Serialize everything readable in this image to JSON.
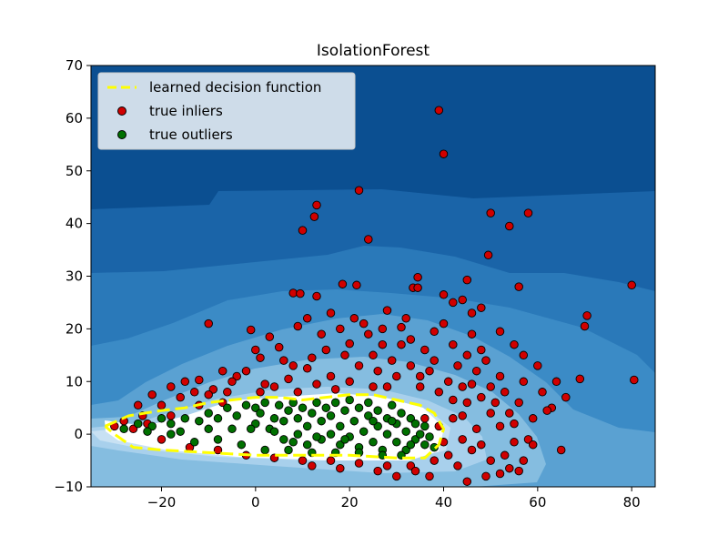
{
  "chart_data": {
    "type": "scatter",
    "title": "IsolationForest",
    "xlabel": "",
    "ylabel": "",
    "xlim": [
      -35,
      85
    ],
    "ylim": [
      -10,
      70
    ],
    "xticks": [
      -20,
      0,
      20,
      40,
      60,
      80
    ],
    "yticks": [
      -10,
      0,
      10,
      20,
      30,
      40,
      50,
      60,
      70
    ],
    "xtick_labels": [
      "−20",
      "0",
      "20",
      "40",
      "60",
      "80"
    ],
    "ytick_labels": [
      "−10",
      "0",
      "10",
      "20",
      "30",
      "40",
      "50",
      "60",
      "70"
    ],
    "grid": false,
    "legend_position": "top-left",
    "legend": [
      {
        "label": "learned decision function",
        "kind": "dashed-line",
        "color": "#ffff00"
      },
      {
        "label": "true inliers",
        "kind": "marker",
        "color": "#d00000"
      },
      {
        "label": "true outliers",
        "kind": "marker",
        "color": "#007000"
      }
    ],
    "decision_boundary": [
      [
        -32,
        1.5
      ],
      [
        -27,
        3.5
      ],
      [
        -20,
        4.5
      ],
      [
        -15,
        5
      ],
      [
        -10,
        6
      ],
      [
        -5,
        6.5
      ],
      [
        0,
        7
      ],
      [
        5,
        7
      ],
      [
        10,
        6.5
      ],
      [
        15,
        7
      ],
      [
        20,
        7.5
      ],
      [
        25,
        7.5
      ],
      [
        30,
        6.5
      ],
      [
        35,
        5.5
      ],
      [
        38,
        4
      ],
      [
        40,
        1
      ],
      [
        39,
        -2
      ],
      [
        36,
        -4.5
      ],
      [
        30,
        -4.5
      ],
      [
        20,
        -4
      ],
      [
        10,
        -4
      ],
      [
        0,
        -4
      ],
      [
        -10,
        -3.5
      ],
      [
        -20,
        -3
      ],
      [
        -26,
        -2.5
      ],
      [
        -30,
        0
      ],
      [
        -32,
        1.5
      ]
    ],
    "inliers": [
      [
        39,
        61.5
      ],
      [
        40,
        53.2
      ],
      [
        22,
        46.3
      ],
      [
        50,
        42
      ],
      [
        58,
        42
      ],
      [
        13,
        43.5
      ],
      [
        54,
        39.5
      ],
      [
        12.5,
        41.3
      ],
      [
        10,
        38.7
      ],
      [
        24,
        37
      ],
      [
        49.5,
        34
      ],
      [
        34.5,
        29.8
      ],
      [
        45,
        29.3
      ],
      [
        80,
        28.3
      ],
      [
        18.5,
        28.5
      ],
      [
        21.5,
        28.3
      ],
      [
        33.5,
        27.8
      ],
      [
        34.5,
        27.8
      ],
      [
        56,
        28
      ],
      [
        8,
        26.8
      ],
      [
        9.5,
        26.7
      ],
      [
        13,
        26.2
      ],
      [
        40,
        26.5
      ],
      [
        -10,
        21
      ],
      [
        -1,
        19.8
      ],
      [
        70.5,
        22.5
      ],
      [
        70,
        20.5
      ],
      [
        28,
        23.5
      ],
      [
        42,
        25
      ],
      [
        44,
        25.5
      ],
      [
        46,
        23
      ],
      [
        48,
        24
      ],
      [
        52,
        19.5
      ],
      [
        55,
        17
      ],
      [
        57,
        15
      ],
      [
        60,
        13
      ],
      [
        64,
        10
      ],
      [
        69,
        10.5
      ],
      [
        80.5,
        10.3
      ],
      [
        63,
        5
      ],
      [
        66,
        7
      ],
      [
        62,
        4.5
      ],
      [
        65,
        -3
      ],
      [
        58,
        -1
      ],
      [
        55,
        2
      ],
      [
        50,
        -5
      ],
      [
        52,
        -7.5
      ],
      [
        54,
        -6.5
      ],
      [
        56,
        -7
      ],
      [
        3,
        18.5
      ],
      [
        9,
        20.5
      ],
      [
        14,
        19
      ],
      [
        18,
        20
      ],
      [
        23,
        21
      ],
      [
        31,
        20.3
      ],
      [
        38,
        19.5
      ],
      [
        42,
        17
      ],
      [
        36,
        16
      ],
      [
        27,
        17
      ],
      [
        20,
        17.2
      ],
      [
        12,
        14.5
      ],
      [
        6,
        14
      ],
      [
        1,
        14.5
      ],
      [
        -7,
        12
      ],
      [
        -12,
        10.3
      ],
      [
        -18,
        9
      ],
      [
        -22,
        7.5
      ],
      [
        -25,
        5.5
      ],
      [
        -15,
        10
      ],
      [
        -9,
        8.5
      ],
      [
        -4,
        11
      ],
      [
        2,
        9.5
      ],
      [
        7,
        10.5
      ],
      [
        11,
        12.5
      ],
      [
        16,
        11
      ],
      [
        22,
        13
      ],
      [
        26,
        12
      ],
      [
        30,
        11
      ],
      [
        33,
        13
      ],
      [
        37,
        12
      ],
      [
        41,
        10
      ],
      [
        44,
        9
      ],
      [
        47,
        12
      ],
      [
        50,
        9
      ],
      [
        45,
        6
      ],
      [
        42,
        3
      ],
      [
        44,
        -1
      ],
      [
        46,
        -3
      ],
      [
        41,
        -4
      ],
      [
        38,
        -5
      ],
      [
        33,
        -6
      ],
      [
        28,
        -6
      ],
      [
        22,
        -5.5
      ],
      [
        16,
        -5
      ],
      [
        10,
        -5
      ],
      [
        4,
        -4.5
      ],
      [
        -2,
        -4
      ],
      [
        -8,
        -3
      ],
      [
        -14,
        -2.5
      ],
      [
        -20,
        -1
      ],
      [
        -26,
        1
      ],
      [
        -28,
        2.5
      ],
      [
        -30,
        1.5
      ],
      [
        25,
        15
      ],
      [
        29,
        14
      ],
      [
        35,
        9
      ],
      [
        39,
        8
      ],
      [
        43,
        13
      ],
      [
        48,
        16
      ],
      [
        52,
        11
      ],
      [
        56,
        6
      ],
      [
        59,
        3
      ],
      [
        47,
        1
      ],
      [
        50,
        4
      ],
      [
        53,
        8
      ],
      [
        15,
        16
      ],
      [
        8,
        13
      ],
      [
        -2,
        12
      ],
      [
        -16,
        7
      ],
      [
        -20,
        5.5
      ],
      [
        -24,
        3.5
      ],
      [
        31,
        17
      ],
      [
        24,
        19
      ],
      [
        19,
        15
      ],
      [
        46,
        19
      ],
      [
        40,
        21
      ],
      [
        32,
        22
      ],
      [
        35,
        11
      ],
      [
        28,
        9
      ],
      [
        20,
        10
      ],
      [
        13,
        9.5
      ],
      [
        4,
        9
      ],
      [
        -6,
        8
      ],
      [
        -10,
        7.5
      ],
      [
        36,
        3
      ],
      [
        40,
        -1.5
      ],
      [
        34,
        -7
      ],
      [
        26,
        -7
      ],
      [
        18,
        -6.5
      ],
      [
        12,
        -6
      ],
      [
        45,
        15
      ],
      [
        49,
        14
      ],
      [
        51,
        6
      ],
      [
        48,
        -2
      ],
      [
        43,
        -6
      ],
      [
        37,
        -8
      ],
      [
        30,
        -8
      ],
      [
        54,
        4
      ],
      [
        57,
        10
      ],
      [
        61,
        8
      ],
      [
        59,
        -2
      ],
      [
        53,
        -4
      ],
      [
        25,
        9
      ],
      [
        17,
        8.5
      ],
      [
        9,
        8
      ],
      [
        1,
        8
      ],
      [
        -7,
        6
      ],
      [
        -12,
        5.5
      ],
      [
        -18,
        3.5
      ],
      [
        -23,
        2
      ],
      [
        38,
        14
      ],
      [
        42,
        6.5
      ],
      [
        33,
        18
      ],
      [
        27,
        20
      ],
      [
        21,
        22
      ],
      [
        16,
        23
      ],
      [
        11,
        22
      ],
      [
        5,
        16.5
      ],
      [
        0,
        16
      ],
      [
        -5,
        10
      ],
      [
        -13,
        8
      ],
      [
        46,
        9.5
      ],
      [
        39,
        1.5
      ],
      [
        44,
        3.5
      ],
      [
        48,
        7
      ],
      [
        52,
        1.5
      ],
      [
        55,
        -1.5
      ],
      [
        57,
        -5
      ],
      [
        49,
        -8
      ],
      [
        45,
        -9
      ]
    ],
    "outliers": [
      [
        -28,
        1
      ],
      [
        -25,
        2
      ],
      [
        -22,
        1.5
      ],
      [
        -20,
        3
      ],
      [
        -18,
        2
      ],
      [
        -15,
        3
      ],
      [
        -12,
        2.5
      ],
      [
        -10,
        4
      ],
      [
        -8,
        3
      ],
      [
        -6,
        5
      ],
      [
        -5,
        1
      ],
      [
        -4,
        3.5
      ],
      [
        -2,
        5.5
      ],
      [
        0,
        2
      ],
      [
        0,
        5
      ],
      [
        1,
        4
      ],
      [
        2,
        6
      ],
      [
        3,
        1
      ],
      [
        4,
        3
      ],
      [
        5,
        5.5
      ],
      [
        6,
        -1
      ],
      [
        6,
        2.5
      ],
      [
        7,
        4.5
      ],
      [
        8,
        6
      ],
      [
        9,
        0
      ],
      [
        9,
        3
      ],
      [
        10,
        5
      ],
      [
        11,
        -2
      ],
      [
        11,
        1.5
      ],
      [
        12,
        4
      ],
      [
        13,
        6
      ],
      [
        14,
        -1
      ],
      [
        14,
        2.5
      ],
      [
        15,
        5
      ],
      [
        16,
        0
      ],
      [
        16,
        3.5
      ],
      [
        17,
        6
      ],
      [
        18,
        -2
      ],
      [
        18,
        1.5
      ],
      [
        19,
        4.5
      ],
      [
        20,
        6.5
      ],
      [
        20,
        -0.5
      ],
      [
        21,
        2.5
      ],
      [
        22,
        5
      ],
      [
        22,
        -2.5
      ],
      [
        23,
        0.5
      ],
      [
        24,
        3.5
      ],
      [
        24,
        6
      ],
      [
        25,
        -1.5
      ],
      [
        26,
        1.5
      ],
      [
        26,
        4.5
      ],
      [
        27,
        -3
      ],
      [
        28,
        0
      ],
      [
        28,
        3
      ],
      [
        29,
        5.5
      ],
      [
        30,
        -1.5
      ],
      [
        30,
        2
      ],
      [
        31,
        4
      ],
      [
        32,
        -3
      ],
      [
        32,
        0.5
      ],
      [
        33,
        3
      ],
      [
        34,
        -1
      ],
      [
        34,
        2
      ],
      [
        35,
        0
      ],
      [
        36,
        -2
      ],
      [
        36,
        1.5
      ],
      [
        37,
        -0.5
      ],
      [
        38,
        -2.5
      ],
      [
        -3,
        -2
      ],
      [
        -8,
        -1
      ],
      [
        -13,
        -1.5
      ],
      [
        -18,
        0
      ],
      [
        -23,
        0.5
      ],
      [
        2,
        -3
      ],
      [
        7,
        -3
      ],
      [
        12,
        -3.5
      ],
      [
        17,
        -3.5
      ],
      [
        22,
        -3.5
      ],
      [
        27,
        -4
      ],
      [
        31,
        -4
      ],
      [
        -1,
        1
      ],
      [
        4,
        0.5
      ],
      [
        8,
        -1.5
      ],
      [
        13,
        -0.5
      ],
      [
        19,
        -1
      ],
      [
        25,
        2.5
      ],
      [
        29,
        2.5
      ],
      [
        33,
        -2
      ],
      [
        -10,
        1
      ],
      [
        -16,
        0.5
      ]
    ]
  }
}
